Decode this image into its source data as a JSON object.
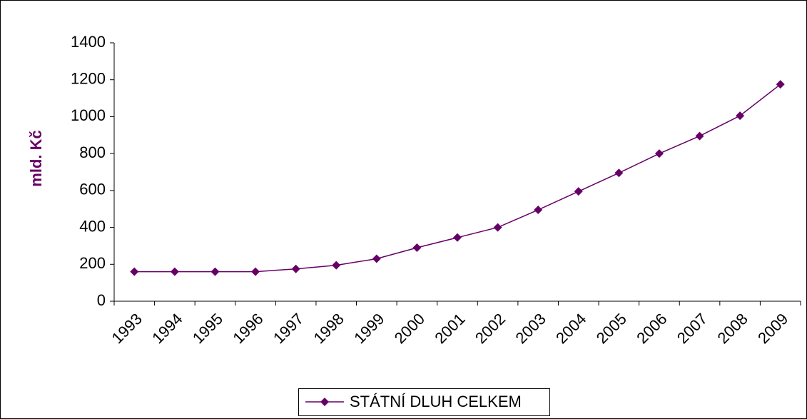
{
  "chart_data": {
    "type": "line",
    "y_label": "mld. Kč",
    "categories": [
      "1993",
      "1994",
      "1995",
      "1996",
      "1997",
      "1998",
      "1999",
      "2000",
      "2001",
      "2002",
      "2003",
      "2004",
      "2005",
      "2006",
      "2007",
      "2008",
      "2009"
    ],
    "series": [
      {
        "name": "STÁTNÍ DLUH CELKEM",
        "color": "#660066",
        "values": [
          160,
          160,
          160,
          160,
          175,
          195,
          230,
          290,
          345,
          400,
          495,
          595,
          695,
          800,
          895,
          1005,
          1175
        ]
      }
    ],
    "ylim": [
      0,
      1400
    ],
    "yticks": [
      0,
      200,
      400,
      600,
      800,
      1000,
      1200,
      1400
    ],
    "legend": "bottom"
  }
}
